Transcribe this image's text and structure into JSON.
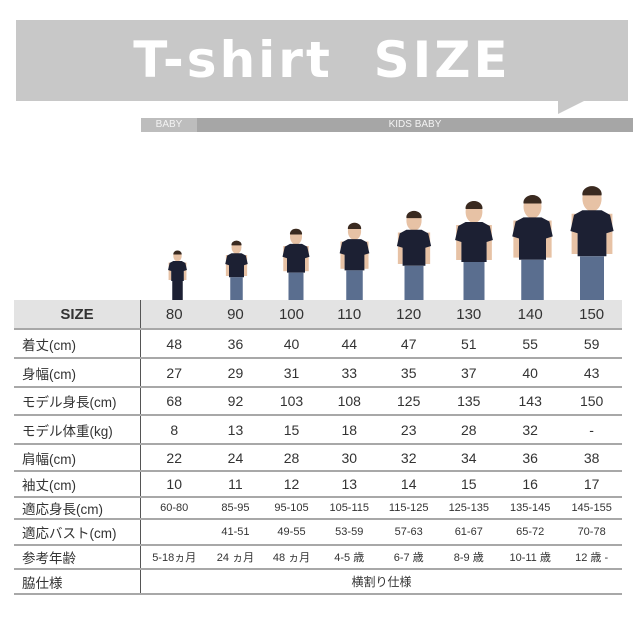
{
  "header": {
    "title": "T-shirt  SIZE"
  },
  "categories": {
    "baby": "BABY",
    "kids": "KIDS BABY"
  },
  "colors": {
    "banner": "#c8c8c8",
    "shirt": "#1c2033",
    "jeans": "#5a6e8f",
    "header_row": "#e3e3e3"
  },
  "table": {
    "header": {
      "label": "SIZE",
      "values": [
        "80",
        "90",
        "100",
        "110",
        "120",
        "130",
        "140",
        "150"
      ]
    },
    "rows": [
      {
        "label": "着丈(cm)",
        "values": [
          "48",
          "36",
          "40",
          "44",
          "47",
          "51",
          "55",
          "59"
        ]
      },
      {
        "label": "身幅(cm)",
        "values": [
          "27",
          "29",
          "31",
          "33",
          "35",
          "37",
          "40",
          "43"
        ]
      },
      {
        "label": "モデル身長(cm)",
        "values": [
          "68",
          "92",
          "103",
          "108",
          "125",
          "135",
          "143",
          "150"
        ]
      },
      {
        "label": "モデル体重(kg)",
        "values": [
          "8",
          "13",
          "15",
          "18",
          "23",
          "28",
          "32",
          "-"
        ]
      },
      {
        "label": "肩幅(cm)",
        "values": [
          "22",
          "24",
          "28",
          "30",
          "32",
          "34",
          "36",
          "38"
        ]
      },
      {
        "label": "袖丈(cm)",
        "values": [
          "10",
          "11",
          "12",
          "13",
          "14",
          "15",
          "16",
          "17"
        ]
      },
      {
        "label": "適応身長(cm)",
        "values": [
          "60-80",
          "85-95",
          "95-105",
          "105-115",
          "115-125",
          "125-135",
          "135-145",
          "145-155"
        ]
      },
      {
        "label": "適応バスト(cm)",
        "values": [
          "",
          "41-51",
          "49-55",
          "53-59",
          "57-63",
          "61-67",
          "65-72",
          "70-78"
        ]
      },
      {
        "label": "参考年齢",
        "values": [
          "5-18ヵ月",
          "24 ヵ月",
          "48 ヵ月",
          "4-5 歳",
          "6-7 歳",
          "8-9 歳",
          "10-11 歳",
          "12 歳 -"
        ]
      }
    ],
    "footer": {
      "label": "脇仕様",
      "value": "横割り仕様"
    }
  }
}
